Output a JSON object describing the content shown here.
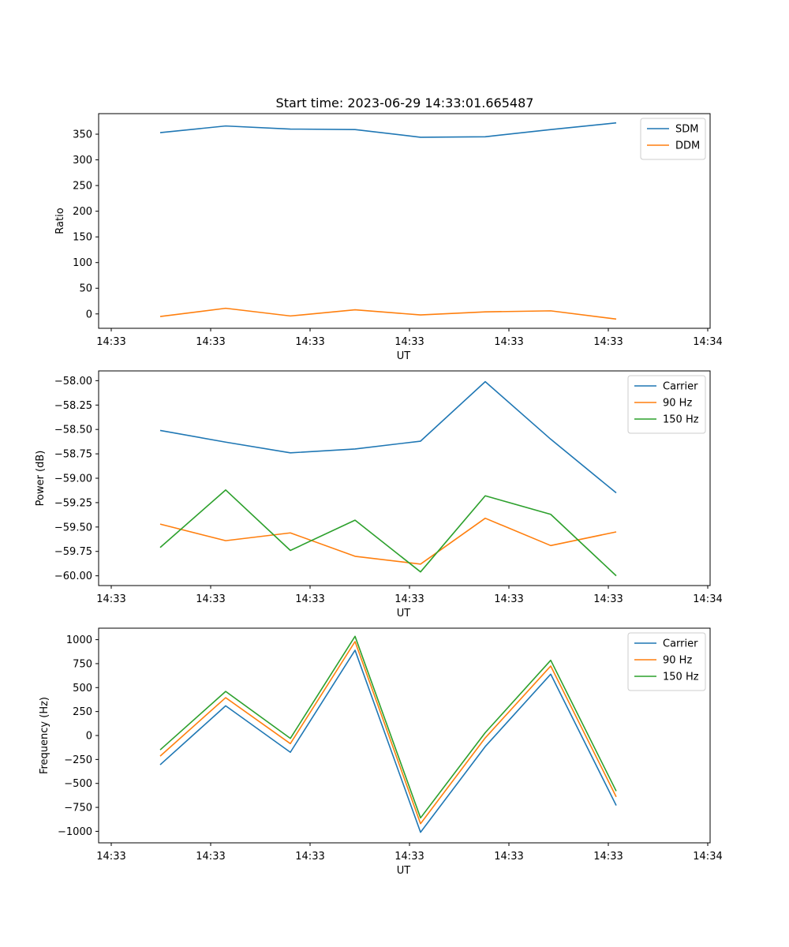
{
  "title": "Start time: 2023-06-29 14:33:01.665487",
  "colors": {
    "blue": "#1f77b4",
    "orange": "#ff7f0e",
    "green": "#2ca02c"
  },
  "chart_data": [
    {
      "type": "line",
      "xlabel": "UT",
      "ylabel": "Ratio",
      "x_tick_labels": [
        "14:33",
        "14:33",
        "14:33",
        "14:33",
        "14:33",
        "14:33",
        "14:34"
      ],
      "y_ticks": [
        0,
        50,
        100,
        150,
        200,
        250,
        300,
        350
      ],
      "ylim": [
        -28,
        390
      ],
      "legend_position": "upper right",
      "grid": false,
      "series": [
        {
          "name": "SDM",
          "color": "#1f77b4",
          "values": [
            353,
            366,
            360,
            359,
            344,
            345,
            359,
            372
          ]
        },
        {
          "name": "DDM",
          "color": "#ff7f0e",
          "values": [
            -5,
            11,
            -4,
            8,
            -2,
            4,
            6,
            -10
          ]
        }
      ]
    },
    {
      "type": "line",
      "xlabel": "UT",
      "ylabel": "Power (dB)",
      "x_tick_labels": [
        "14:33",
        "14:33",
        "14:33",
        "14:33",
        "14:33",
        "14:33",
        "14:34"
      ],
      "y_ticks": [
        -60.0,
        -59.75,
        -59.5,
        -59.25,
        -59.0,
        -58.75,
        -58.5,
        -58.25,
        -58.0
      ],
      "y_tick_labels": [
        "−60.00",
        "−59.75",
        "−59.50",
        "−59.25",
        "−59.00",
        "−58.75",
        "−58.50",
        "−58.25",
        "−58.00"
      ],
      "ylim": [
        -60.1,
        -57.9
      ],
      "legend_position": "upper right",
      "grid": false,
      "series": [
        {
          "name": "Carrier",
          "color": "#1f77b4",
          "values": [
            -58.51,
            -58.63,
            -58.74,
            -58.7,
            -58.62,
            -58.01,
            -58.6,
            -59.15
          ]
        },
        {
          "name": "90 Hz",
          "color": "#ff7f0e",
          "values": [
            -59.47,
            -59.64,
            -59.56,
            -59.8,
            -59.88,
            -59.41,
            -59.69,
            -59.55
          ]
        },
        {
          "name": "150 Hz",
          "color": "#2ca02c",
          "values": [
            -59.71,
            -59.12,
            -59.74,
            -59.43,
            -59.96,
            -59.18,
            -59.37,
            -60.0
          ]
        }
      ]
    },
    {
      "type": "line",
      "xlabel": "UT",
      "ylabel": "Frequency (Hz)",
      "x_tick_labels": [
        "14:33",
        "14:33",
        "14:33",
        "14:33",
        "14:33",
        "14:33",
        "14:34"
      ],
      "y_ticks": [
        -1000,
        -750,
        -500,
        -250,
        0,
        250,
        500,
        750,
        1000
      ],
      "y_tick_labels": [
        "−1000",
        "−750",
        "−500",
        "−250",
        "0",
        "250",
        "500",
        "750",
        "1000"
      ],
      "ylim": [
        -1120,
        1120
      ],
      "legend_position": "upper right",
      "grid": false,
      "series": [
        {
          "name": "Carrier",
          "color": "#1f77b4",
          "values": [
            -305,
            310,
            -175,
            890,
            -1010,
            -115,
            640,
            -730
          ]
        },
        {
          "name": "90 Hz",
          "color": "#ff7f0e",
          "values": [
            -215,
            395,
            -85,
            980,
            -920,
            -25,
            725,
            -640
          ]
        },
        {
          "name": "150 Hz",
          "color": "#2ca02c",
          "values": [
            -150,
            460,
            -30,
            1035,
            -860,
            30,
            785,
            -580
          ]
        }
      ]
    }
  ]
}
